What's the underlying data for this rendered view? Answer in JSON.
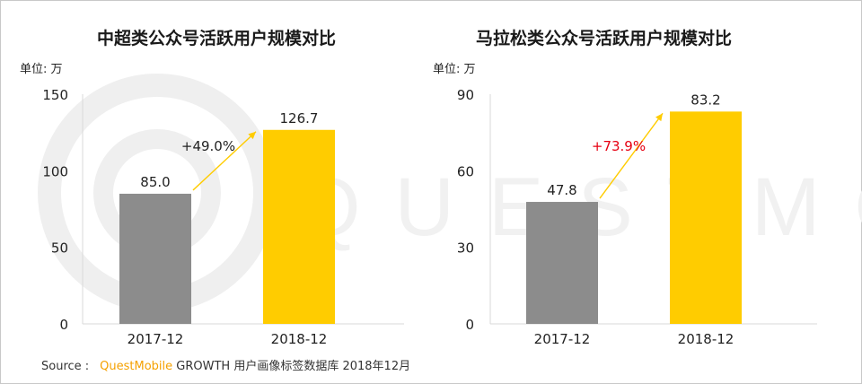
{
  "chart_data": [
    {
      "type": "bar",
      "title": "中超类公众号活跃用户规模对比",
      "unit": "单位: 万",
      "categories": [
        "2017-12",
        "2018-12"
      ],
      "values": [
        85.0,
        126.7
      ],
      "value_labels": [
        "85.0",
        "126.7"
      ],
      "bar_colors": [
        "#8c8c8c",
        "#ffcc00"
      ],
      "ylim": [
        0,
        150
      ],
      "yticks": [
        0,
        50,
        100,
        150
      ],
      "growth_label": "+49.0%",
      "growth_color": "#222222",
      "arrow_color": "#ffcc00"
    },
    {
      "type": "bar",
      "title": "马拉松类公众号活跃用户规模对比",
      "unit": "单位: 万",
      "categories": [
        "2017-12",
        "2018-12"
      ],
      "values": [
        47.8,
        83.2
      ],
      "value_labels": [
        "47.8",
        "83.2"
      ],
      "bar_colors": [
        "#8c8c8c",
        "#ffcc00"
      ],
      "ylim": [
        0,
        90
      ],
      "yticks": [
        0,
        30,
        60,
        90
      ],
      "growth_label": "+73.9%",
      "growth_color": "#e60012",
      "arrow_color": "#ffcc00"
    }
  ],
  "source": {
    "prefix": "Source :",
    "brand": "QuestMobile",
    "text": "GROWTH 用户画像标签数据库 2018年12月"
  },
  "watermark": {
    "text": "QUESTMOBILE",
    "color": "#f1f1f1"
  }
}
